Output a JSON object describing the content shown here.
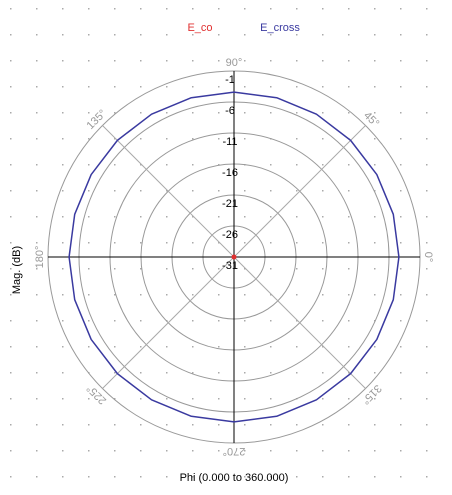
{
  "chart_data": {
    "type": "polar",
    "xlabel": "Phi (0.000 to 360.000)",
    "ylabel": "Mag. (dB)",
    "x": [
      0,
      15,
      30,
      45,
      60,
      75,
      90,
      105,
      120,
      135,
      150,
      165,
      180,
      195,
      210,
      225,
      240,
      255,
      270,
      285,
      300,
      315,
      330,
      345,
      360
    ],
    "series": [
      {
        "name": "E_co",
        "color": "#e03030",
        "values": [
          -31,
          -31,
          -31,
          -31,
          -31,
          -31,
          -31,
          -31,
          -31,
          -31,
          -31,
          -31,
          -31,
          -31,
          -31,
          -31,
          -31,
          -31,
          -31,
          -31,
          -31,
          -31,
          -31,
          -31,
          -31
        ]
      },
      {
        "name": "E_cross",
        "color": "#3a3aa0",
        "values": [
          -4.4,
          -4.4,
          -4.4,
          -4.4,
          -4.4,
          -4.4,
          -4.4,
          -4.4,
          -4.4,
          -4.4,
          -4.4,
          -4.4,
          -4.4,
          -4.4,
          -4.4,
          -4.4,
          -4.4,
          -4.4,
          -4.4,
          -4.4,
          -4.4,
          -4.4,
          -4.4,
          -4.4,
          -4.4
        ]
      }
    ],
    "rlim": [
      -31,
      -1
    ],
    "rticks": [
      -1,
      -6,
      -11,
      -16,
      -21,
      -26,
      -31
    ],
    "angleticks": [
      {
        "value": 0,
        "label": "0°"
      },
      {
        "value": 45,
        "label": "45°"
      },
      {
        "value": 90,
        "label": "90°"
      },
      {
        "value": 135,
        "label": "135°"
      },
      {
        "value": 180,
        "label": "180°"
      },
      {
        "value": 225,
        "label": "225°"
      },
      {
        "value": 270,
        "label": "270°"
      },
      {
        "value": 315,
        "label": "315°"
      }
    ],
    "grid": true
  }
}
